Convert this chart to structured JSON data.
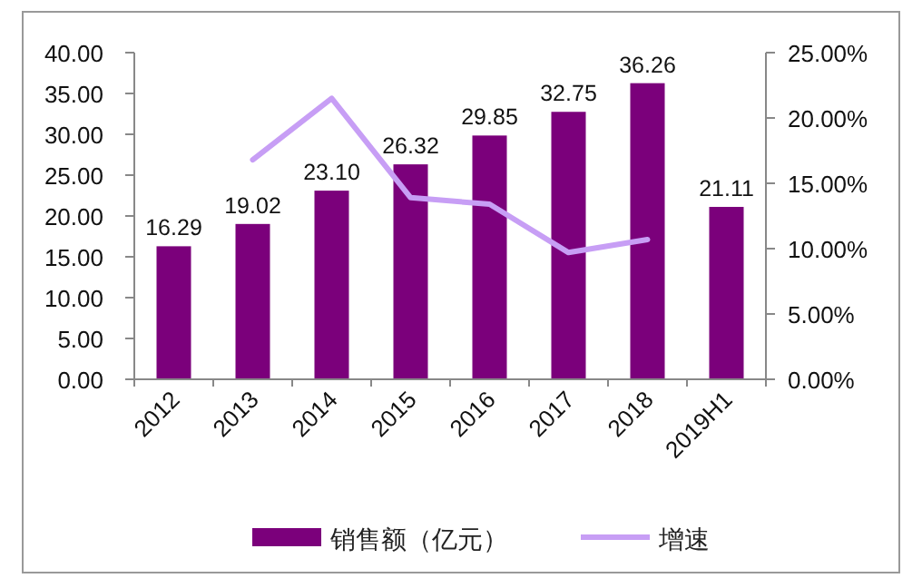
{
  "chart_data": {
    "type": "bar",
    "categories": [
      "2012",
      "2013",
      "2014",
      "2015",
      "2016",
      "2017",
      "2018",
      "2019H1"
    ],
    "series": [
      {
        "name": "销售额（亿元）",
        "color": "#7b007b",
        "values": [
          16.29,
          19.02,
          23.1,
          26.32,
          29.85,
          32.75,
          36.26,
          21.11
        ],
        "value_labels": [
          "16.29",
          "19.02",
          "23.10",
          "26.32",
          "29.85",
          "32.75",
          "36.26",
          "21.11"
        ]
      },
      {
        "name": "增速",
        "type": "line",
        "axis": "y2",
        "color": "#c79ef5",
        "values": [
          null,
          16.8,
          21.5,
          13.9,
          13.4,
          9.7,
          10.7,
          null
        ]
      }
    ],
    "ylim": [
      0,
      40
    ],
    "yticks": [
      {
        "value": 0,
        "label": "0.00"
      },
      {
        "value": 5,
        "label": "5.00"
      },
      {
        "value": 10,
        "label": "10.00"
      },
      {
        "value": 15,
        "label": "15.00"
      },
      {
        "value": 20,
        "label": "20.00"
      },
      {
        "value": 25,
        "label": "25.00"
      },
      {
        "value": 30,
        "label": "30.00"
      },
      {
        "value": 35,
        "label": "35.00"
      },
      {
        "value": 40,
        "label": "40.00"
      }
    ],
    "y2lim": [
      0,
      25
    ],
    "y2ticks": [
      {
        "value": 0,
        "label": "0.00%"
      },
      {
        "value": 5,
        "label": "5.00%"
      },
      {
        "value": 10,
        "label": "10.00%"
      },
      {
        "value": 15,
        "label": "15.00%"
      },
      {
        "value": 20,
        "label": "20.00%"
      },
      {
        "value": 25,
        "label": "25.00%"
      }
    ],
    "grid": false,
    "legend": "bottom"
  }
}
